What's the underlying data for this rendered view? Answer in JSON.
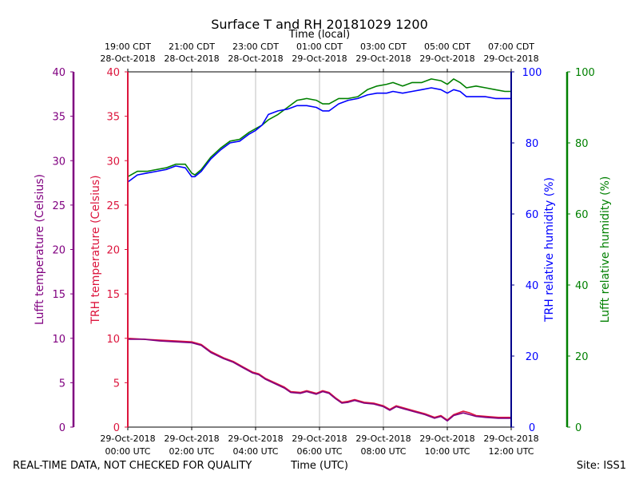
{
  "chart_data": {
    "type": "line",
    "title": "Surface T and RH 20181029 1200",
    "top_axis_label": "Time (local)",
    "bottom_axis_label": "Time (UTC)",
    "footer_left": "REAL-TIME DATA, NOT CHECKED FOR QUALITY",
    "footer_right": "Site: ISS1",
    "x_ticks_utc": [
      {
        "hour": 0,
        "line1": "29-Oct-2018",
        "line2": "00:00 UTC"
      },
      {
        "hour": 2,
        "line1": "29-Oct-2018",
        "line2": "02:00 UTC"
      },
      {
        "hour": 4,
        "line1": "29-Oct-2018",
        "line2": "04:00 UTC"
      },
      {
        "hour": 6,
        "line1": "29-Oct-2018",
        "line2": "06:00 UTC"
      },
      {
        "hour": 8,
        "line1": "29-Oct-2018",
        "line2": "08:00 UTC"
      },
      {
        "hour": 10,
        "line1": "29-Oct-2018",
        "line2": "10:00 UTC"
      },
      {
        "hour": 12,
        "line1": "29-Oct-2018",
        "line2": "12:00 UTC"
      }
    ],
    "x_ticks_local": [
      {
        "hour": 0,
        "line1": "19:00 CDT",
        "line2": "28-Oct-2018"
      },
      {
        "hour": 2,
        "line1": "21:00 CDT",
        "line2": "28-Oct-2018"
      },
      {
        "hour": 4,
        "line1": "23:00 CDT",
        "line2": "28-Oct-2018"
      },
      {
        "hour": 6,
        "line1": "01:00 CDT",
        "line2": "29-Oct-2018"
      },
      {
        "hour": 8,
        "line1": "03:00 CDT",
        "line2": "29-Oct-2018"
      },
      {
        "hour": 10,
        "line1": "05:00 CDT",
        "line2": "29-Oct-2018"
      },
      {
        "hour": 12,
        "line1": "07:00 CDT",
        "line2": "29-Oct-2018"
      }
    ],
    "xlim": [
      0,
      12
    ],
    "temp_ylim": [
      0,
      40
    ],
    "temp_ticks": [
      0,
      5,
      10,
      15,
      20,
      25,
      30,
      35,
      40
    ],
    "rh_ylim": [
      0,
      100
    ],
    "rh_ticks": [
      0,
      20,
      40,
      60,
      80,
      100
    ],
    "axes": {
      "lufft_temp": {
        "label": "Lufft temperature (Celsius)",
        "color": "#800080"
      },
      "trh_temp": {
        "label": "TRH temperature (Celsius)",
        "color": "#dc143c"
      },
      "trh_rh": {
        "label": "TRH relative humidity (%)",
        "color": "#0000ff"
      },
      "lufft_rh": {
        "label": "Lufft relative humidity (%)",
        "color": "#008000"
      }
    },
    "series": [
      {
        "name": "Lufft relative humidity (%)",
        "axis": "rh",
        "color": "#008000",
        "points": [
          [
            0,
            70.5
          ],
          [
            0.3,
            72
          ],
          [
            0.6,
            72
          ],
          [
            0.9,
            72.5
          ],
          [
            1.2,
            73
          ],
          [
            1.5,
            74
          ],
          [
            1.8,
            74
          ],
          [
            2.0,
            71.5
          ],
          [
            2.1,
            71
          ],
          [
            2.3,
            72.5
          ],
          [
            2.6,
            76
          ],
          [
            2.9,
            78.5
          ],
          [
            3.2,
            80.5
          ],
          [
            3.5,
            81
          ],
          [
            3.8,
            83
          ],
          [
            4.0,
            84
          ],
          [
            4.2,
            85
          ],
          [
            4.4,
            86.5
          ],
          [
            4.7,
            88
          ],
          [
            5.0,
            90
          ],
          [
            5.3,
            92
          ],
          [
            5.6,
            92.5
          ],
          [
            5.9,
            92
          ],
          [
            6.1,
            91
          ],
          [
            6.3,
            91
          ],
          [
            6.6,
            92.5
          ],
          [
            6.9,
            92.5
          ],
          [
            7.2,
            93
          ],
          [
            7.5,
            95
          ],
          [
            7.8,
            96
          ],
          [
            8.1,
            96.5
          ],
          [
            8.3,
            97
          ],
          [
            8.6,
            96
          ],
          [
            8.9,
            97
          ],
          [
            9.2,
            97
          ],
          [
            9.5,
            98
          ],
          [
            9.8,
            97.5
          ],
          [
            10.0,
            96.5
          ],
          [
            10.2,
            98
          ],
          [
            10.4,
            97
          ],
          [
            10.6,
            95.5
          ],
          [
            10.9,
            96
          ],
          [
            11.2,
            95.5
          ],
          [
            11.5,
            95
          ],
          [
            11.8,
            94.5
          ],
          [
            12.0,
            94.5
          ]
        ]
      },
      {
        "name": "TRH relative humidity (%)",
        "axis": "rh",
        "color": "#0000ff",
        "points": [
          [
            0,
            69
          ],
          [
            0.3,
            71
          ],
          [
            0.6,
            71.5
          ],
          [
            0.9,
            72
          ],
          [
            1.2,
            72.5
          ],
          [
            1.5,
            73.5
          ],
          [
            1.8,
            73
          ],
          [
            2.0,
            70.5
          ],
          [
            2.1,
            70.5
          ],
          [
            2.3,
            72
          ],
          [
            2.6,
            75.5
          ],
          [
            2.9,
            78
          ],
          [
            3.2,
            80
          ],
          [
            3.5,
            80.5
          ],
          [
            3.8,
            82.5
          ],
          [
            4.0,
            83.5
          ],
          [
            4.2,
            85
          ],
          [
            4.4,
            88
          ],
          [
            4.7,
            89
          ],
          [
            5.0,
            89.5
          ],
          [
            5.3,
            90.5
          ],
          [
            5.6,
            90.5
          ],
          [
            5.9,
            90
          ],
          [
            6.1,
            89
          ],
          [
            6.3,
            89
          ],
          [
            6.6,
            91
          ],
          [
            6.9,
            92
          ],
          [
            7.2,
            92.5
          ],
          [
            7.5,
            93.5
          ],
          [
            7.8,
            94
          ],
          [
            8.1,
            94
          ],
          [
            8.3,
            94.5
          ],
          [
            8.6,
            94
          ],
          [
            8.9,
            94.5
          ],
          [
            9.2,
            95
          ],
          [
            9.5,
            95.5
          ],
          [
            9.8,
            95
          ],
          [
            10.0,
            94
          ],
          [
            10.2,
            95
          ],
          [
            10.4,
            94.5
          ],
          [
            10.6,
            93
          ],
          [
            10.9,
            93
          ],
          [
            11.2,
            93
          ],
          [
            11.5,
            92.5
          ],
          [
            11.8,
            92.5
          ],
          [
            12.0,
            92.5
          ]
        ]
      },
      {
        "name": "TRH temperature (Celsius)",
        "axis": "temp",
        "color": "#dc143c",
        "points": [
          [
            0,
            10.0
          ],
          [
            0.5,
            9.9
          ],
          [
            1.0,
            9.8
          ],
          [
            1.5,
            9.7
          ],
          [
            2.0,
            9.6
          ],
          [
            2.3,
            9.3
          ],
          [
            2.6,
            8.5
          ],
          [
            3.0,
            7.8
          ],
          [
            3.3,
            7.4
          ],
          [
            3.6,
            6.8
          ],
          [
            3.9,
            6.2
          ],
          [
            4.1,
            6.0
          ],
          [
            4.3,
            5.5
          ],
          [
            4.6,
            5.0
          ],
          [
            4.9,
            4.5
          ],
          [
            5.1,
            4.0
          ],
          [
            5.4,
            3.9
          ],
          [
            5.6,
            4.1
          ],
          [
            5.9,
            3.8
          ],
          [
            6.1,
            4.1
          ],
          [
            6.3,
            3.9
          ],
          [
            6.5,
            3.3
          ],
          [
            6.7,
            2.8
          ],
          [
            6.9,
            2.9
          ],
          [
            7.1,
            3.1
          ],
          [
            7.4,
            2.8
          ],
          [
            7.7,
            2.7
          ],
          [
            8.0,
            2.4
          ],
          [
            8.2,
            2.0
          ],
          [
            8.4,
            2.4
          ],
          [
            8.7,
            2.1
          ],
          [
            9.0,
            1.8
          ],
          [
            9.3,
            1.5
          ],
          [
            9.6,
            1.1
          ],
          [
            9.8,
            1.3
          ],
          [
            10.0,
            0.8
          ],
          [
            10.2,
            1.4
          ],
          [
            10.5,
            1.8
          ],
          [
            10.7,
            1.6
          ],
          [
            10.9,
            1.3
          ],
          [
            11.2,
            1.2
          ],
          [
            11.6,
            1.1
          ],
          [
            12.0,
            1.1
          ]
        ]
      },
      {
        "name": "Lufft temperature (Celsius)",
        "axis": "temp",
        "color": "#800080",
        "points": [
          [
            0,
            9.9
          ],
          [
            0.5,
            9.9
          ],
          [
            1.0,
            9.7
          ],
          [
            1.5,
            9.6
          ],
          [
            2.0,
            9.5
          ],
          [
            2.3,
            9.2
          ],
          [
            2.6,
            8.4
          ],
          [
            3.0,
            7.7
          ],
          [
            3.3,
            7.3
          ],
          [
            3.6,
            6.7
          ],
          [
            3.9,
            6.1
          ],
          [
            4.1,
            5.9
          ],
          [
            4.3,
            5.4
          ],
          [
            4.6,
            4.9
          ],
          [
            4.9,
            4.4
          ],
          [
            5.1,
            3.9
          ],
          [
            5.4,
            3.8
          ],
          [
            5.6,
            4.0
          ],
          [
            5.9,
            3.7
          ],
          [
            6.1,
            4.0
          ],
          [
            6.3,
            3.8
          ],
          [
            6.5,
            3.2
          ],
          [
            6.7,
            2.7
          ],
          [
            6.9,
            2.8
          ],
          [
            7.1,
            3.0
          ],
          [
            7.4,
            2.7
          ],
          [
            7.7,
            2.6
          ],
          [
            8.0,
            2.3
          ],
          [
            8.2,
            1.9
          ],
          [
            8.4,
            2.3
          ],
          [
            8.7,
            2.0
          ],
          [
            9.0,
            1.7
          ],
          [
            9.3,
            1.4
          ],
          [
            9.6,
            1.0
          ],
          [
            9.8,
            1.2
          ],
          [
            10.0,
            0.7
          ],
          [
            10.2,
            1.3
          ],
          [
            10.5,
            1.6
          ],
          [
            10.7,
            1.4
          ],
          [
            10.9,
            1.2
          ],
          [
            11.2,
            1.1
          ],
          [
            11.6,
            1.0
          ],
          [
            12.0,
            1.0
          ]
        ]
      }
    ]
  }
}
